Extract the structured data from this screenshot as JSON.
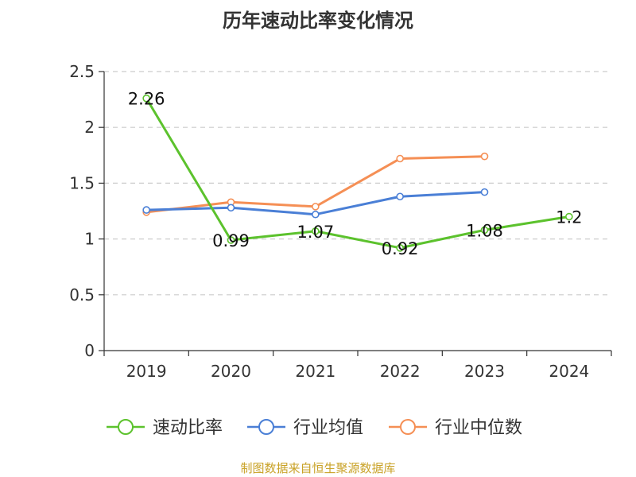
{
  "title": "历年速动比率变化情况",
  "source": "制图数据来自恒生聚源数据库",
  "colors": {
    "quick_ratio": "#5cc22d",
    "industry_avg": "#4a7fd6",
    "industry_median": "#f58f55",
    "grid": "#cccccc",
    "axis": "#333333",
    "source_text": "#c9a227"
  },
  "chart_data": {
    "type": "line",
    "title": "历年速动比率变化情况",
    "categories": [
      "2019",
      "2020",
      "2021",
      "2022",
      "2023",
      "2024"
    ],
    "ylim": [
      0,
      2.5
    ],
    "yticks": [
      "0",
      "0.5",
      "1",
      "1.5",
      "2",
      "2.5"
    ],
    "grid": true,
    "legend_position": "bottom",
    "series": [
      {
        "name": "速动比率",
        "values": [
          2.26,
          0.99,
          1.07,
          0.92,
          1.08,
          1.2
        ],
        "labels": [
          "2.26",
          "0.99",
          "1.07",
          "0.92",
          "1.08",
          "1.2"
        ]
      },
      {
        "name": "行业均值",
        "values": [
          1.26,
          1.28,
          1.22,
          1.38,
          1.42,
          null
        ]
      },
      {
        "name": "行业中位数",
        "values": [
          1.24,
          1.33,
          1.29,
          1.72,
          1.74,
          null
        ]
      }
    ]
  }
}
